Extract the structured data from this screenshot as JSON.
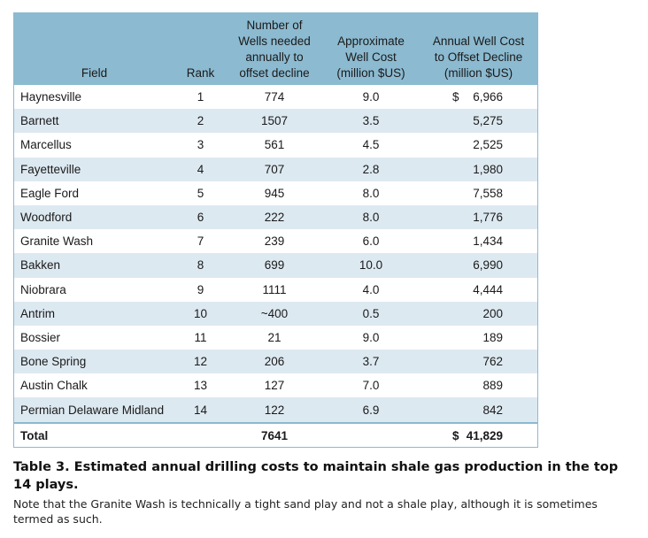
{
  "table": {
    "headers": {
      "field": "Field",
      "rank": "Rank",
      "wells": [
        "Number of",
        "Wells needed",
        "annually to",
        "offset decline"
      ],
      "cost": [
        "Approximate",
        "Well Cost",
        "(million $US)"
      ],
      "annual": [
        "Annual Well Cost",
        "to Offset Decline",
        "(million $US)"
      ]
    },
    "rows": [
      {
        "field": "Haynesville",
        "rank": "1",
        "wells": "774",
        "cost": "9.0",
        "currency": "$",
        "annual": "6,966"
      },
      {
        "field": "Barnett",
        "rank": "2",
        "wells": "1507",
        "cost": "3.5",
        "currency": "",
        "annual": "5,275"
      },
      {
        "field": "Marcellus",
        "rank": "3",
        "wells": "561",
        "cost": "4.5",
        "currency": "",
        "annual": "2,525"
      },
      {
        "field": "Fayetteville",
        "rank": "4",
        "wells": "707",
        "cost": "2.8",
        "currency": "",
        "annual": "1,980"
      },
      {
        "field": "Eagle Ford",
        "rank": "5",
        "wells": "945",
        "cost": "8.0",
        "currency": "",
        "annual": "7,558"
      },
      {
        "field": "Woodford",
        "rank": "6",
        "wells": "222",
        "cost": "8.0",
        "currency": "",
        "annual": "1,776"
      },
      {
        "field": "Granite Wash",
        "rank": "7",
        "wells": "239",
        "cost": "6.0",
        "currency": "",
        "annual": "1,434"
      },
      {
        "field": "Bakken",
        "rank": "8",
        "wells": "699",
        "cost": "10.0",
        "currency": "",
        "annual": "6,990"
      },
      {
        "field": "Niobrara",
        "rank": "9",
        "wells": "1111",
        "cost": "4.0",
        "currency": "",
        "annual": "4,444"
      },
      {
        "field": "Antrim",
        "rank": "10",
        "wells": "~400",
        "cost": "0.5",
        "currency": "",
        "annual": "200"
      },
      {
        "field": "Bossier",
        "rank": "11",
        "wells": "21",
        "cost": "9.0",
        "currency": "",
        "annual": "189"
      },
      {
        "field": "Bone Spring",
        "rank": "12",
        "wells": "206",
        "cost": "3.7",
        "currency": "",
        "annual": "762"
      },
      {
        "field": "Austin Chalk",
        "rank": "13",
        "wells": "127",
        "cost": "7.0",
        "currency": "",
        "annual": "889"
      },
      {
        "field": "Permian Delaware Midland",
        "rank": "14",
        "wells": "122",
        "cost": "6.9",
        "currency": "",
        "annual": "842"
      }
    ],
    "total": {
      "field": "Total",
      "rank": "",
      "wells": "7641",
      "cost": "",
      "currency": "$",
      "annual": "41,829"
    }
  },
  "caption": {
    "title": "Table 3. Estimated annual drilling costs to maintain shale gas production in the top 14 plays.",
    "note": "Note that the Granite Wash is technically a tight sand play and not a shale play, although it is sometimes termed as such."
  },
  "colors": {
    "header_bg": "#8cbad0",
    "row_shade": "#dde9f1",
    "border": "#8cbad0"
  }
}
